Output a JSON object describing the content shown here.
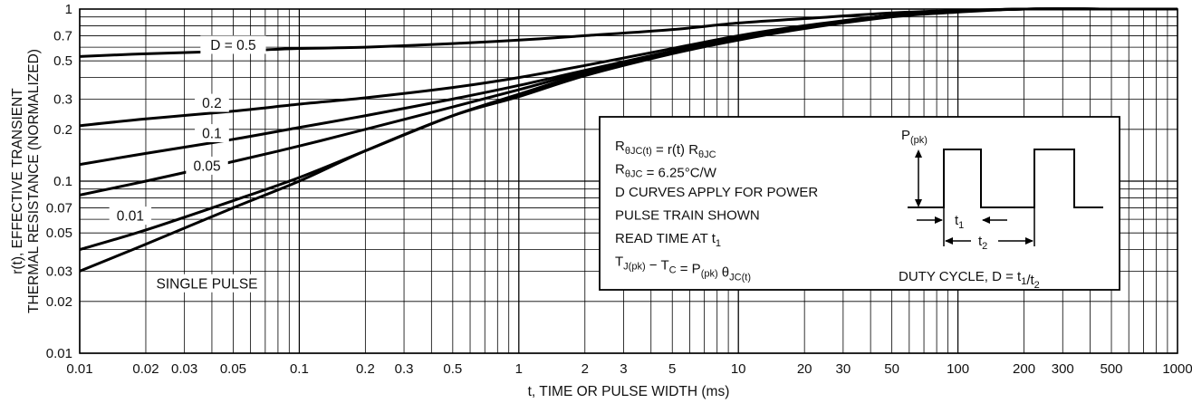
{
  "chart_data": {
    "type": "line",
    "x_scale": "log",
    "y_scale": "log",
    "xlim": [
      0.01,
      1000
    ],
    "ylim": [
      0.01,
      1
    ],
    "grid": true,
    "xlabel": "t, TIME OR PULSE WIDTH (ms)",
    "ylabel_line1": "r(t), EFFECTIVE TRANSIENT",
    "ylabel_line2": "THERMAL RESISTANCE (NORMALIZED)",
    "x_ticks": [
      {
        "value": 0.01,
        "label": "0.01"
      },
      {
        "value": 0.02,
        "label": "0.02"
      },
      {
        "value": 0.03,
        "label": "0.03"
      },
      {
        "value": 0.05,
        "label": "0.05"
      },
      {
        "value": 0.1,
        "label": "0.1"
      },
      {
        "value": 0.2,
        "label": "0.2"
      },
      {
        "value": 0.3,
        "label": "0.3"
      },
      {
        "value": 0.5,
        "label": "0.5"
      },
      {
        "value": 1,
        "label": "1"
      },
      {
        "value": 2,
        "label": "2"
      },
      {
        "value": 3,
        "label": "3"
      },
      {
        "value": 5,
        "label": "5"
      },
      {
        "value": 10,
        "label": "10"
      },
      {
        "value": 20,
        "label": "20"
      },
      {
        "value": 30,
        "label": "30"
      },
      {
        "value": 50,
        "label": "50"
      },
      {
        "value": 100,
        "label": "100"
      },
      {
        "value": 200,
        "label": "200"
      },
      {
        "value": 300,
        "label": "300"
      },
      {
        "value": 500,
        "label": "500"
      },
      {
        "value": 1000,
        "label": "1000"
      }
    ],
    "y_ticks": [
      {
        "value": 1,
        "label": "1"
      },
      {
        "value": 0.7,
        "label": "0.7"
      },
      {
        "value": 0.5,
        "label": "0.5"
      },
      {
        "value": 0.3,
        "label": "0.3"
      },
      {
        "value": 0.2,
        "label": "0.2"
      },
      {
        "value": 0.1,
        "label": "0.1"
      },
      {
        "value": 0.07,
        "label": "0.07"
      },
      {
        "value": 0.05,
        "label": "0.05"
      },
      {
        "value": 0.03,
        "label": "0.03"
      },
      {
        "value": 0.02,
        "label": "0.02"
      },
      {
        "value": 0.01,
        "label": "0.01"
      }
    ],
    "series": [
      {
        "name": "D = 0.5",
        "label_at": [
          0.05,
          0.62
        ],
        "x": [
          0.01,
          0.02,
          0.05,
          0.1,
          0.2,
          0.5,
          1,
          2,
          5,
          10,
          20,
          50,
          100,
          200,
          500,
          1000
        ],
        "y": [
          0.53,
          0.55,
          0.57,
          0.59,
          0.6,
          0.63,
          0.66,
          0.7,
          0.76,
          0.83,
          0.88,
          0.95,
          0.98,
          1.0,
          1.0,
          1.0
        ]
      },
      {
        "name": "0.2",
        "label_at": [
          0.04,
          0.285
        ],
        "x": [
          0.01,
          0.02,
          0.05,
          0.1,
          0.2,
          0.5,
          1,
          2,
          5,
          10,
          20,
          50,
          100,
          200,
          500,
          1000
        ],
        "y": [
          0.21,
          0.23,
          0.255,
          0.28,
          0.305,
          0.35,
          0.4,
          0.47,
          0.59,
          0.7,
          0.8,
          0.92,
          0.97,
          1.0,
          1.0,
          1.0
        ]
      },
      {
        "name": "0.1",
        "label_at": [
          0.04,
          0.19
        ],
        "x": [
          0.01,
          0.02,
          0.05,
          0.1,
          0.2,
          0.5,
          1,
          2,
          5,
          10,
          20,
          50,
          100,
          200,
          500,
          1000
        ],
        "y": [
          0.125,
          0.145,
          0.175,
          0.205,
          0.24,
          0.3,
          0.36,
          0.44,
          0.57,
          0.68,
          0.79,
          0.92,
          0.97,
          1.0,
          1.0,
          1.0
        ]
      },
      {
        "name": "0.05",
        "label_at": [
          0.038,
          0.123
        ],
        "x": [
          0.01,
          0.02,
          0.05,
          0.1,
          0.2,
          0.5,
          1,
          2,
          5,
          10,
          20,
          50,
          100,
          200,
          500,
          1000
        ],
        "y": [
          0.083,
          0.1,
          0.13,
          0.16,
          0.2,
          0.27,
          0.34,
          0.43,
          0.56,
          0.68,
          0.79,
          0.92,
          0.97,
          1.0,
          1.0,
          1.0
        ]
      },
      {
        "name": "0.01",
        "label_at": [
          0.017,
          0.063
        ],
        "x": [
          0.01,
          0.02,
          0.05,
          0.1,
          0.2,
          0.5,
          1,
          2,
          5,
          10,
          20,
          50,
          100,
          200,
          500,
          1000
        ],
        "y": [
          0.04,
          0.052,
          0.077,
          0.105,
          0.15,
          0.24,
          0.32,
          0.42,
          0.56,
          0.68,
          0.79,
          0.92,
          0.97,
          1.0,
          1.0,
          1.0
        ]
      },
      {
        "name": "SINGLE PULSE",
        "label_at": [
          0.038,
          0.0255
        ],
        "x": [
          0.01,
          0.02,
          0.05,
          0.1,
          0.2,
          0.5,
          1,
          2,
          5,
          10,
          20,
          50,
          100,
          200,
          500,
          1000
        ],
        "y": [
          0.03,
          0.043,
          0.07,
          0.1,
          0.15,
          0.24,
          0.31,
          0.41,
          0.55,
          0.66,
          0.77,
          0.9,
          0.96,
          1.0,
          1.0,
          1.0
        ]
      }
    ],
    "annotation_box": {
      "lines": [
        [
          {
            "t": "R"
          },
          {
            "t": "θJC(t)",
            "sub": true
          },
          {
            "t": " = r(t) R"
          },
          {
            "t": "θJC",
            "sub": true
          }
        ],
        [
          {
            "t": "R"
          },
          {
            "t": "θJC",
            "sub": true
          },
          {
            "t": " = 6.25°C/W"
          }
        ],
        [
          {
            "t": "D CURVES APPLY FOR POWER"
          }
        ],
        [
          {
            "t": "PULSE TRAIN SHOWN"
          }
        ],
        [
          {
            "t": "READ TIME AT t"
          },
          {
            "t": "1",
            "sub": true
          }
        ],
        [
          {
            "t": "T"
          },
          {
            "t": "J(pk)",
            "sub": true
          },
          {
            "t": " − T"
          },
          {
            "t": "C",
            "sub": true
          },
          {
            "t": " = P"
          },
          {
            "t": "(pk)",
            "sub": true
          },
          {
            "t": " θ"
          },
          {
            "t": "JC(t)",
            "sub": true
          }
        ]
      ],
      "pulse_label": [
        {
          "t": "P"
        },
        {
          "t": "(pk)",
          "sub": true
        }
      ],
      "t1_label": [
        {
          "t": "t"
        },
        {
          "t": "1",
          "sub": true
        }
      ],
      "t2_label": [
        {
          "t": "t"
        },
        {
          "t": "2",
          "sub": true
        }
      ],
      "duty_cycle": [
        {
          "t": "DUTY CYCLE, D = t"
        },
        {
          "t": "1",
          "sub": true
        },
        {
          "t": "/t"
        },
        {
          "t": "2",
          "sub": true
        }
      ]
    }
  }
}
